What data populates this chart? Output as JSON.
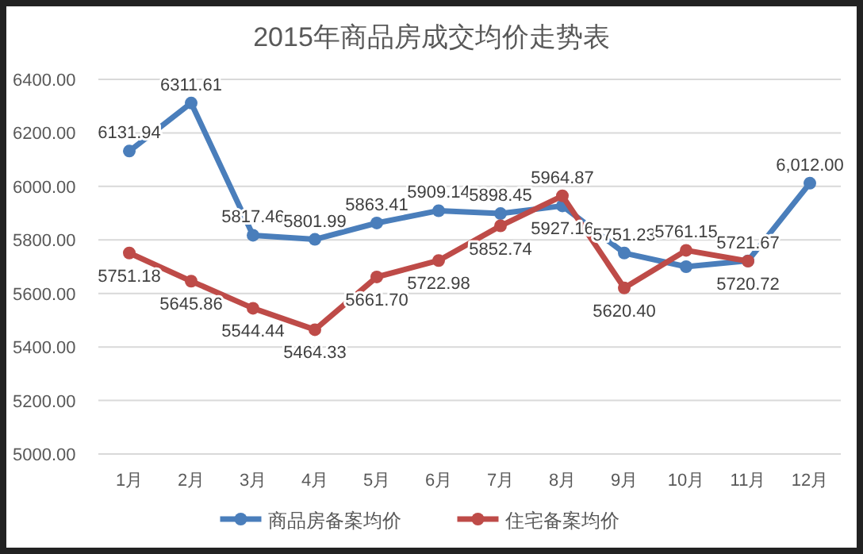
{
  "chart_data": {
    "type": "line",
    "title": "2015年商品房成交均价走势表",
    "categories": [
      "1月",
      "2月",
      "3月",
      "4月",
      "5月",
      "6月",
      "7月",
      "8月",
      "9月",
      "10月",
      "11月",
      "12月"
    ],
    "ylim": [
      5000,
      6400
    ],
    "yticks": [
      {
        "value": 5000,
        "label": "5000.00"
      },
      {
        "value": 5200,
        "label": "5200.00"
      },
      {
        "value": 5400,
        "label": "5400.00"
      },
      {
        "value": 5600,
        "label": "5600.00"
      },
      {
        "value": 5800,
        "label": "5800.00"
      },
      {
        "value": 6000,
        "label": "6000.00"
      },
      {
        "value": 6200,
        "label": "6200.00"
      },
      {
        "value": 6400,
        "label": "6400.00"
      }
    ],
    "grid": "y",
    "legend": "bottom",
    "marker": "circle",
    "line_style": "solid",
    "series": [
      {
        "name": "商品房备案均价",
        "color": "#4a7ebb",
        "values": [
          6131.94,
          6311.61,
          5817.46,
          5801.99,
          5863.41,
          5909.14,
          5898.45,
          5927.16,
          5751.23,
          5700,
          5721.67,
          6012.0
        ],
        "value_labels": [
          "6131.94",
          "6311.61",
          "5817.46",
          "5801.99",
          "5863.41",
          "5909.14",
          "5898.45",
          "5927.16",
          "5751.23",
          null,
          "5721.67",
          "6,012.00"
        ]
      },
      {
        "name": "住宅备案均价",
        "color": "#be4b48",
        "values": [
          5751.18,
          5645.86,
          5544.44,
          5464.33,
          5661.7,
          5722.98,
          5852.74,
          5964.87,
          5620.4,
          5761.15,
          5720.72,
          null
        ],
        "value_labels": [
          "5751.18",
          "5645.86",
          "5544.44",
          "5464.33",
          "5661.70",
          "5722.98",
          "5852.74",
          "5964.87",
          "5620.40",
          "5761.15",
          "5720.72",
          null
        ]
      }
    ]
  }
}
